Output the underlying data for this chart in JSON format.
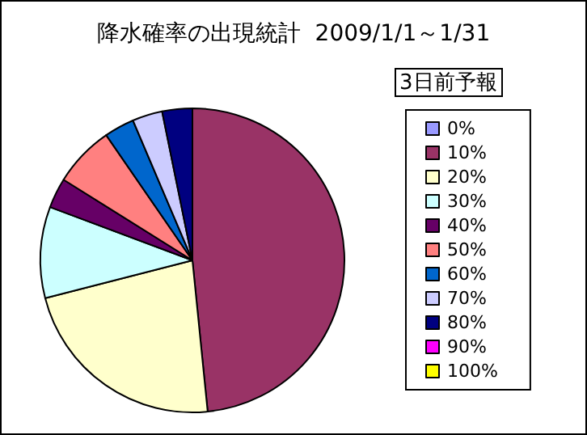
{
  "chart_data": {
    "type": "pie",
    "title": "降水確率の出現統計  2009/1/1～1/31",
    "legend_title": "3日前予報",
    "categories": [
      "0%",
      "10%",
      "20%",
      "30%",
      "40%",
      "50%",
      "60%",
      "70%",
      "80%",
      "90%",
      "100%"
    ],
    "values": [
      0,
      48.4,
      22.6,
      9.7,
      3.2,
      6.5,
      3.2,
      3.2,
      3.2,
      0,
      0
    ],
    "colors": [
      "#9999ff",
      "#993366",
      "#ffffcc",
      "#ccffff",
      "#660066",
      "#ff8080",
      "#0066cc",
      "#ccccff",
      "#000080",
      "#ff00ff",
      "#ffff00"
    ],
    "legend": "right"
  }
}
